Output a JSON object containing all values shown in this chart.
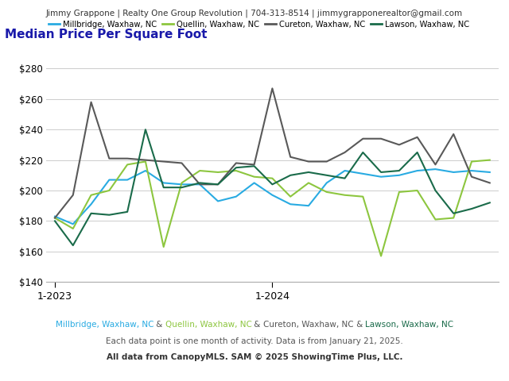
{
  "title": "Median Price Per Square Foot",
  "header": "Jimmy Grappone | Realty One Group Revolution | 704-313-8514 | jimmygrapponerealtor@gmail.com",
  "footer2": "Each data point is one month of activity. Data is from January 21, 2025.",
  "footer3": "All data from CanopyMLS. SAM © 2025 ShowingTime Plus, LLC.",
  "x_labels": [
    "1-2023",
    "1-2024"
  ],
  "ylim": [
    140,
    290
  ],
  "yticks": [
    140,
    160,
    180,
    200,
    220,
    240,
    260,
    280
  ],
  "series": {
    "Millbridge, Waxhaw, NC": {
      "color": "#29ABE2",
      "values": [
        183,
        178,
        191,
        207,
        207,
        213,
        205,
        204,
        204,
        193,
        196,
        205,
        197,
        191,
        190,
        205,
        213,
        211,
        209,
        210,
        213,
        214,
        212,
        213,
        212
      ]
    },
    "Quellin, Waxhaw, NC": {
      "color": "#8DC63F",
      "values": [
        182,
        175,
        197,
        200,
        217,
        219,
        163,
        205,
        213,
        212,
        213,
        209,
        208,
        196,
        205,
        199,
        197,
        196,
        157,
        199,
        200,
        181,
        182,
        219,
        220
      ]
    },
    "Cureton, Waxhaw, NC": {
      "color": "#595959",
      "values": [
        182,
        197,
        258,
        221,
        221,
        220,
        219,
        218,
        204,
        204,
        218,
        217,
        267,
        222,
        219,
        219,
        225,
        234,
        234,
        230,
        235,
        217,
        237,
        209,
        205
      ]
    },
    "Lawson, Waxhaw, NC": {
      "color": "#1A6B4A",
      "values": [
        180,
        164,
        185,
        184,
        186,
        240,
        202,
        202,
        205,
        204,
        215,
        216,
        204,
        210,
        212,
        210,
        208,
        225,
        212,
        213,
        225,
        200,
        185,
        188,
        192
      ]
    }
  },
  "n_points": 25,
  "bg_color": "#ffffff",
  "grid_color": "#cccccc",
  "header_bg": "#eeeeee",
  "title_color": "#1a1aaa",
  "footer_parts": [
    [
      "Millbridge, Waxhaw, NC",
      "#29ABE2"
    ],
    [
      " & ",
      "#555555"
    ],
    [
      "Quellin, Waxhaw, NC",
      "#8DC63F"
    ],
    [
      " & ",
      "#555555"
    ],
    [
      "Cureton, Waxhaw, NC",
      "#555555"
    ],
    [
      " & ",
      "#555555"
    ],
    [
      "Lawson, Waxhaw, NC",
      "#1A6B4A"
    ]
  ]
}
